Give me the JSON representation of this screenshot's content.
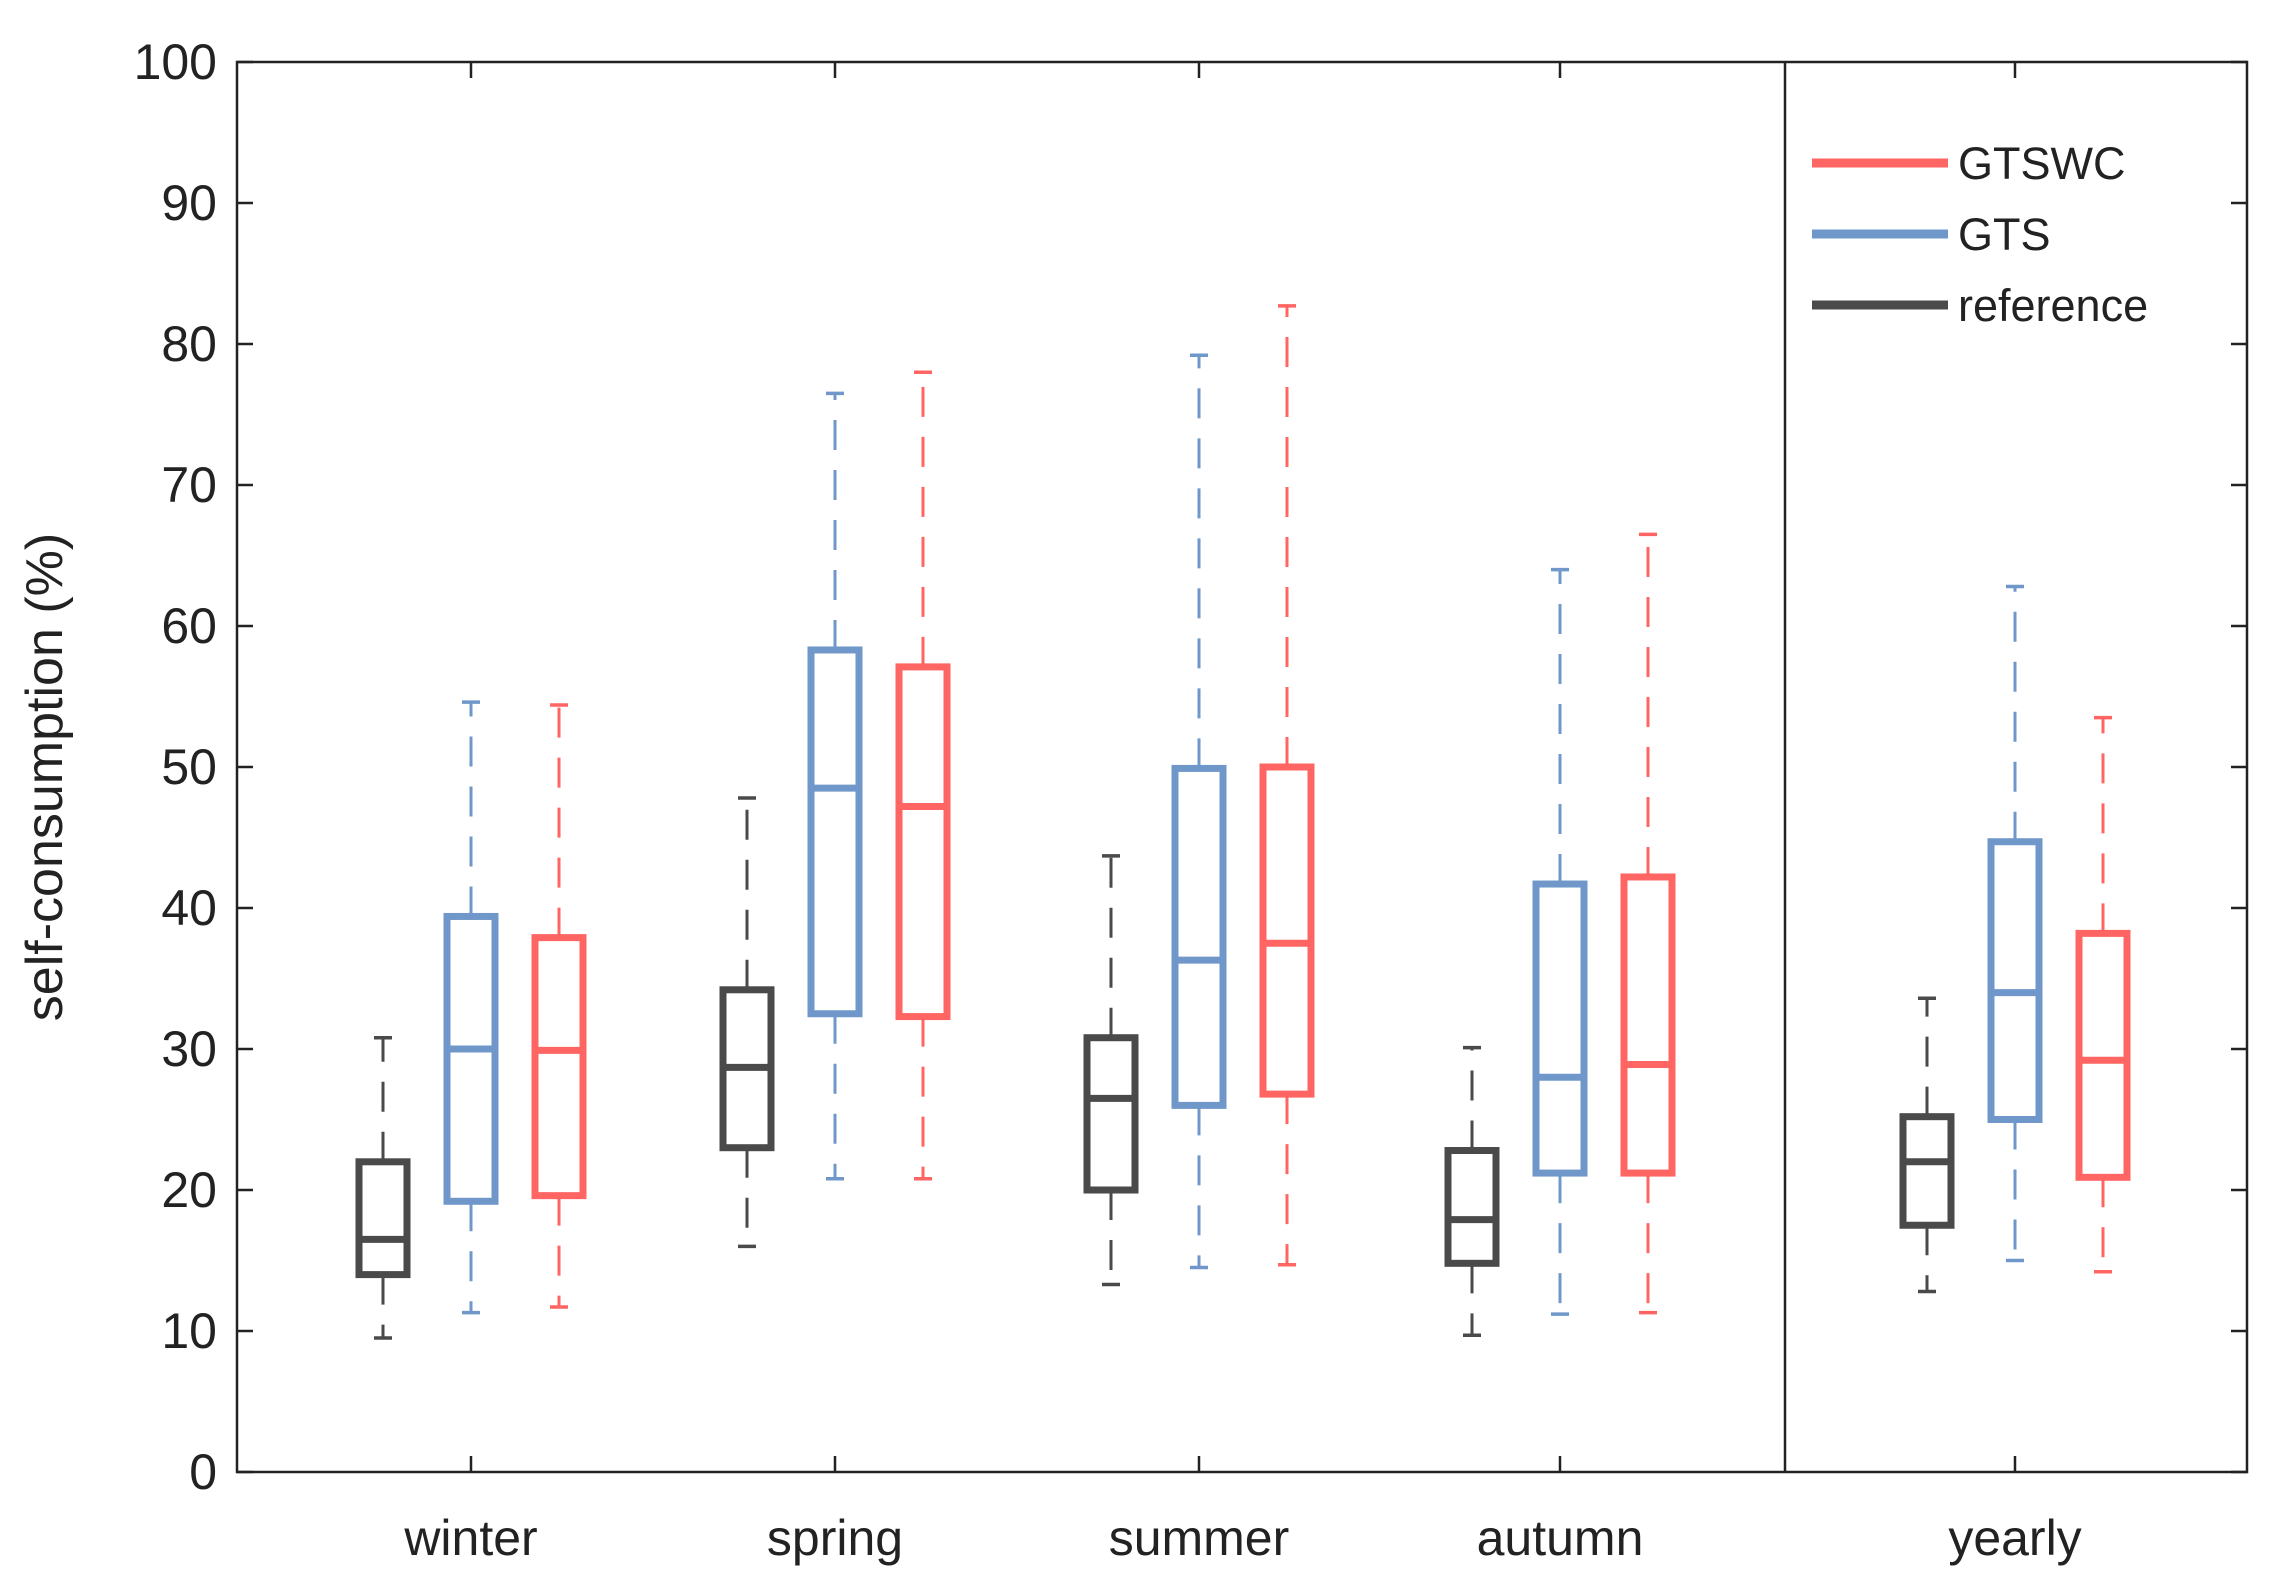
{
  "chart_data": {
    "type": "boxplot",
    "ylabel": "self-consumption (%)",
    "xlabel": "",
    "ylim": [
      0,
      100
    ],
    "yticks": [
      0,
      10,
      20,
      30,
      40,
      50,
      60,
      70,
      80,
      90,
      100
    ],
    "grid": false,
    "legend_position": "top-right",
    "separator_after_category": "autumn",
    "categories": [
      "winter",
      "spring",
      "summer",
      "autumn",
      "yearly"
    ],
    "series": [
      {
        "name": "reference",
        "color": "#4a4a4a",
        "boxes": [
          {
            "category": "winter",
            "min": 9.5,
            "q1": 14,
            "median": 16.5,
            "q3": 22,
            "max": 30.8
          },
          {
            "category": "spring",
            "min": 16,
            "q1": 23,
            "median": 28.7,
            "q3": 34.2,
            "max": 47.8
          },
          {
            "category": "summer",
            "min": 13.3,
            "q1": 20,
            "median": 26.5,
            "q3": 30.8,
            "max": 43.7
          },
          {
            "category": "autumn",
            "min": 9.7,
            "q1": 14.8,
            "median": 17.9,
            "q3": 22.8,
            "max": 30.1
          },
          {
            "category": "yearly",
            "min": 12.8,
            "q1": 17.5,
            "median": 22,
            "q3": 25.2,
            "max": 33.6
          }
        ]
      },
      {
        "name": "GTS",
        "color": "#7097c9",
        "boxes": [
          {
            "category": "winter",
            "min": 11.3,
            "q1": 19.2,
            "median": 30,
            "q3": 39.4,
            "max": 54.6
          },
          {
            "category": "spring",
            "min": 20.8,
            "q1": 32.5,
            "median": 48.5,
            "q3": 58.3,
            "max": 76.5
          },
          {
            "category": "summer",
            "min": 14.5,
            "q1": 26,
            "median": 36.3,
            "q3": 49.9,
            "max": 79.2
          },
          {
            "category": "autumn",
            "min": 11.2,
            "q1": 21.2,
            "median": 28,
            "q3": 41.7,
            "max": 64
          },
          {
            "category": "yearly",
            "min": 15,
            "q1": 25,
            "median": 34,
            "q3": 44.7,
            "max": 62.8
          }
        ]
      },
      {
        "name": "GTSWC",
        "color": "#ff6562",
        "boxes": [
          {
            "category": "winter",
            "min": 11.7,
            "q1": 19.6,
            "median": 29.9,
            "q3": 37.9,
            "max": 54.4
          },
          {
            "category": "spring",
            "min": 20.8,
            "q1": 32.3,
            "median": 47.2,
            "q3": 57.1,
            "max": 78
          },
          {
            "category": "summer",
            "min": 14.7,
            "q1": 26.8,
            "median": 37.5,
            "q3": 50,
            "max": 82.7
          },
          {
            "category": "autumn",
            "min": 11.3,
            "q1": 21.2,
            "median": 28.9,
            "q3": 42.2,
            "max": 66.5
          },
          {
            "category": "yearly",
            "min": 14.2,
            "q1": 20.9,
            "median": 29.2,
            "q3": 38.2,
            "max": 53.5
          }
        ]
      }
    ],
    "legend": [
      {
        "name": "GTSWC",
        "color": "#ff6562"
      },
      {
        "name": "GTS",
        "color": "#7097c9"
      },
      {
        "name": "reference",
        "color": "#4a4a4a"
      }
    ]
  }
}
